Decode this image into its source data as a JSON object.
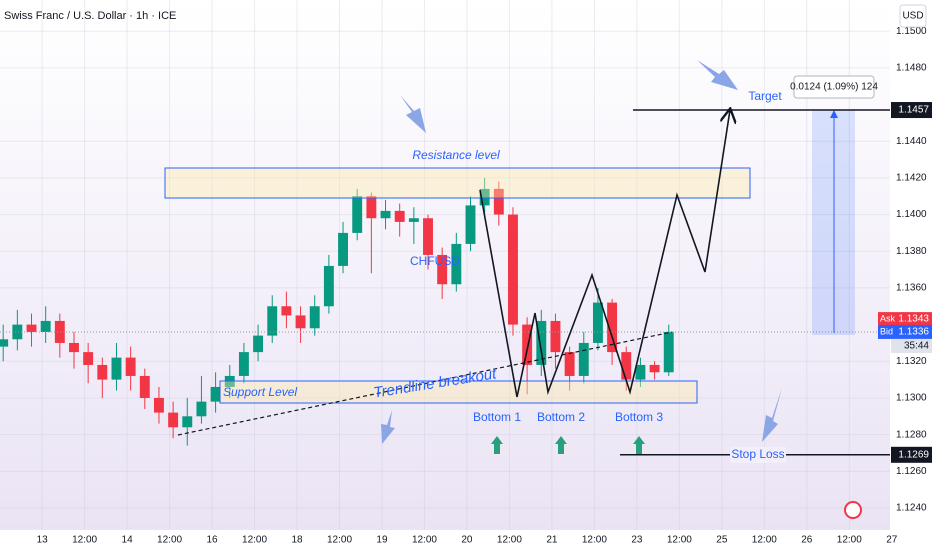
{
  "header": {
    "title": "Swiss Franc / U.S. Dollar · 1h · ICE",
    "currency": "USD"
  },
  "chart_data": {
    "type": "candlestick",
    "x": [
      13,
      17,
      21,
      25,
      29,
      33,
      37,
      41,
      45,
      49,
      53,
      57,
      61,
      65,
      69,
      73,
      77,
      81,
      85,
      89,
      93,
      97,
      101,
      105,
      109,
      113,
      117,
      121,
      125,
      129,
      133,
      137,
      141,
      145,
      149,
      153,
      157,
      161,
      165,
      169,
      173,
      177,
      181,
      185,
      189,
      193,
      197,
      201
    ],
    "open": [
      1.1328,
      1.1332,
      1.134,
      1.1336,
      1.1342,
      1.133,
      1.1325,
      1.1318,
      1.131,
      1.1322,
      1.1312,
      1.13,
      1.1292,
      1.1284,
      1.129,
      1.1298,
      1.1306,
      1.1312,
      1.1325,
      1.1334,
      1.135,
      1.1345,
      1.1338,
      1.135,
      1.1372,
      1.139,
      1.141,
      1.1398,
      1.1402,
      1.1396,
      1.1398,
      1.1378,
      1.1362,
      1.1384,
      1.1405,
      1.1414,
      1.14,
      1.134,
      1.1318,
      1.1342,
      1.1325,
      1.1312,
      1.133,
      1.1352,
      1.1325,
      1.131,
      1.1318,
      1.1314
    ],
    "high": [
      1.134,
      1.1348,
      1.1346,
      1.135,
      1.1346,
      1.1336,
      1.133,
      1.1322,
      1.133,
      1.1328,
      1.1316,
      1.1306,
      1.1298,
      1.13,
      1.1312,
      1.1314,
      1.1318,
      1.133,
      1.134,
      1.1356,
      1.1358,
      1.135,
      1.1356,
      1.1378,
      1.1396,
      1.1414,
      1.1412,
      1.1408,
      1.1406,
      1.1404,
      1.14,
      1.1382,
      1.139,
      1.141,
      1.142,
      1.1418,
      1.1404,
      1.1344,
      1.1348,
      1.1346,
      1.1328,
      1.1336,
      1.136,
      1.1354,
      1.1328,
      1.1322,
      1.132,
      1.134
    ],
    "low": [
      1.132,
      1.1326,
      1.1328,
      1.133,
      1.1322,
      1.1316,
      1.1308,
      1.13,
      1.1304,
      1.1304,
      1.1294,
      1.1286,
      1.1278,
      1.1274,
      1.1286,
      1.1292,
      1.13,
      1.1308,
      1.132,
      1.133,
      1.1338,
      1.133,
      1.1334,
      1.1346,
      1.1368,
      1.1386,
      1.1368,
      1.1392,
      1.1388,
      1.1384,
      1.137,
      1.1354,
      1.1358,
      1.138,
      1.14,
      1.1394,
      1.1334,
      1.1302,
      1.1312,
      1.1316,
      1.1304,
      1.1308,
      1.1326,
      1.1318,
      1.1304,
      1.1306,
      1.131,
      1.1312
    ],
    "close": [
      1.1332,
      1.134,
      1.1336,
      1.1342,
      1.133,
      1.1325,
      1.1318,
      1.131,
      1.1322,
      1.1312,
      1.13,
      1.1292,
      1.1284,
      1.129,
      1.1298,
      1.1306,
      1.1312,
      1.1325,
      1.1334,
      1.135,
      1.1345,
      1.1338,
      1.135,
      1.1372,
      1.139,
      1.141,
      1.1398,
      1.1402,
      1.1396,
      1.1398,
      1.1378,
      1.1362,
      1.1384,
      1.1405,
      1.1414,
      1.14,
      1.134,
      1.1318,
      1.1342,
      1.1325,
      1.1312,
      1.133,
      1.1352,
      1.1325,
      1.131,
      1.1318,
      1.1314,
      1.1336
    ],
    "up_color": "#089981",
    "down_color": "#f23645",
    "xlim": [
      12.1,
      263.5
    ],
    "xticks": [
      {
        "value": 24,
        "label": "13"
      },
      {
        "value": 36,
        "label": "12:00"
      },
      {
        "value": 48,
        "label": "14"
      },
      {
        "value": 60,
        "label": "12:00"
      },
      {
        "value": 72,
        "label": "16"
      },
      {
        "value": 84,
        "label": "12:00"
      },
      {
        "value": 96,
        "label": "18"
      },
      {
        "value": 108,
        "label": "12:00"
      },
      {
        "value": 120,
        "label": "19"
      },
      {
        "value": 132,
        "label": "12:00"
      },
      {
        "value": 144,
        "label": "20"
      },
      {
        "value": 156,
        "label": "12:00"
      },
      {
        "value": 168,
        "label": "21"
      },
      {
        "value": 180,
        "label": "12:00"
      },
      {
        "value": 192,
        "label": "23"
      },
      {
        "value": 204,
        "label": "12:00"
      },
      {
        "value": 216,
        "label": "25"
      },
      {
        "value": 228,
        "label": "12:00"
      },
      {
        "value": 240,
        "label": "26"
      },
      {
        "value": 252,
        "label": "12:00"
      },
      {
        "value": 264,
        "label": "27"
      }
    ],
    "ylim": [
      1.1228,
      1.1517
    ],
    "yticks": [
      {
        "value": 1.124,
        "label": "1.1240"
      },
      {
        "value": 1.126,
        "label": "1.1260"
      },
      {
        "value": 1.128,
        "label": "1.1280"
      },
      {
        "value": 1.13,
        "label": "1.1300"
      },
      {
        "value": 1.132,
        "label": "1.1320"
      },
      {
        "value": 1.136,
        "label": "1.1360"
      },
      {
        "value": 1.138,
        "label": "1.1380"
      },
      {
        "value": 1.14,
        "label": "1.1400"
      },
      {
        "value": 1.142,
        "label": "1.1420"
      },
      {
        "value": 1.144,
        "label": "1.1440"
      },
      {
        "value": 1.148,
        "label": "1.1480"
      },
      {
        "value": 1.15,
        "label": "1.1500"
      }
    ],
    "target": {
      "label": "Target",
      "value": 1.1457,
      "price_label": "1.1457"
    },
    "stop_loss": {
      "label": "Stop Loss",
      "value": 1.1269,
      "price_label": "1.1269"
    },
    "ask": {
      "label": "Ask",
      "value": 1.1343,
      "price_label": "1.1343"
    },
    "bid": {
      "label": "Bid",
      "value": 1.1336,
      "price_label": "1.1336"
    },
    "countdown": "35:44",
    "position_info": "0.0124 (1.09%) 124",
    "annotations": {
      "resistance": "Resistance level",
      "support": "Support Level",
      "trendline": "Trendline breakout",
      "symbol": "CHFUSD",
      "bottoms": [
        "Bottom 1",
        "Bottom 2",
        "Bottom 3"
      ]
    }
  }
}
